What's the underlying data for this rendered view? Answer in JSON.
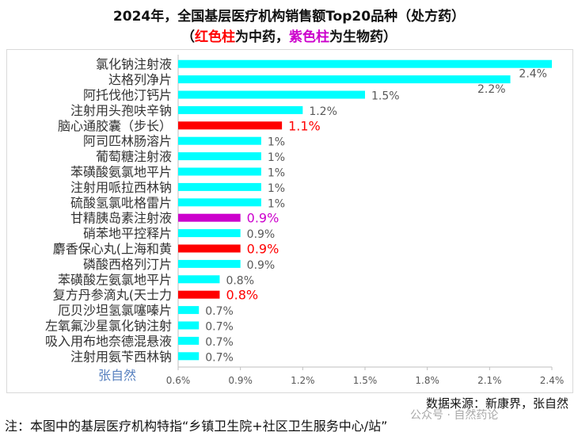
{
  "title": "2024年，全国基层医疗机构销售额Top20品种（处方药）",
  "subtitle": {
    "open": "（",
    "red_part": "红色柱",
    "mid": "为中药，",
    "purple_part": "紫色柱",
    "end": "为生物药）"
  },
  "source": "数据来源：新康界，张自然",
  "note": "注：本图中的基层医疗机构特指“乡镇卫生院+社区卫生服务中心/站”",
  "watermarks": {
    "middle": "张自然",
    "bottom_right": "公众号 · 自然药论"
  },
  "colors": {
    "cyan": "#00ffff",
    "red": "#ff0000",
    "purple": "#cc00cc",
    "grid": "#d9d9d9"
  },
  "chart_data": {
    "type": "bar",
    "orientation": "horizontal",
    "xlim": [
      0.6,
      2.4
    ],
    "xticks": [
      "0.6%",
      "0.9%",
      "1.2%",
      "1.5%",
      "1.8%",
      "2.1%",
      "2.4%"
    ],
    "grid": false,
    "legend": "none",
    "categories": [
      "氯化钠注射液",
      "达格列净片",
      "阿托伐他汀钙片",
      "注射用头孢呋辛钠",
      "脑心通胶囊（步长）",
      "阿司匹林肠溶片",
      "葡萄糖注射液",
      "苯磺酸氨氯地平片",
      "注射用哌拉西林钠",
      "硫酸氢氯吡格雷片",
      "甘精胰岛素注射液",
      "硝苯地平控释片",
      "麝香保心丸(上海和黄",
      "磷酸西格列汀片",
      "苯磺酸左氨氯地平片",
      "复方丹参滴丸(天士力",
      "厄贝沙坦氢氯噻嗪片",
      "左氧氟沙星氯化钠注射",
      "吸入用布地奈德混悬液",
      "注射用氨苄西林钠"
    ],
    "values": [
      2.4,
      2.2,
      1.5,
      1.2,
      1.1,
      1.0,
      1.0,
      1.0,
      1.0,
      1.0,
      0.9,
      0.9,
      0.9,
      0.9,
      0.8,
      0.8,
      0.7,
      0.7,
      0.7,
      0.7
    ],
    "labels": [
      "2.4%",
      "2.2%",
      "1.5%",
      "1.2%",
      "1.1%",
      "1%",
      "1%",
      "1%",
      "1%",
      "1%",
      "0.9%",
      "0.9%",
      "0.9%",
      "0.9%",
      "0.8%",
      "0.8%",
      "0.7%",
      "0.7%",
      "0.7%",
      "0.7%"
    ],
    "kinds": [
      "normal",
      "normal",
      "normal",
      "normal",
      "tcm",
      "normal",
      "normal",
      "normal",
      "normal",
      "normal",
      "bio",
      "normal",
      "tcm",
      "normal",
      "normal",
      "tcm",
      "normal",
      "normal",
      "normal",
      "normal"
    ]
  }
}
